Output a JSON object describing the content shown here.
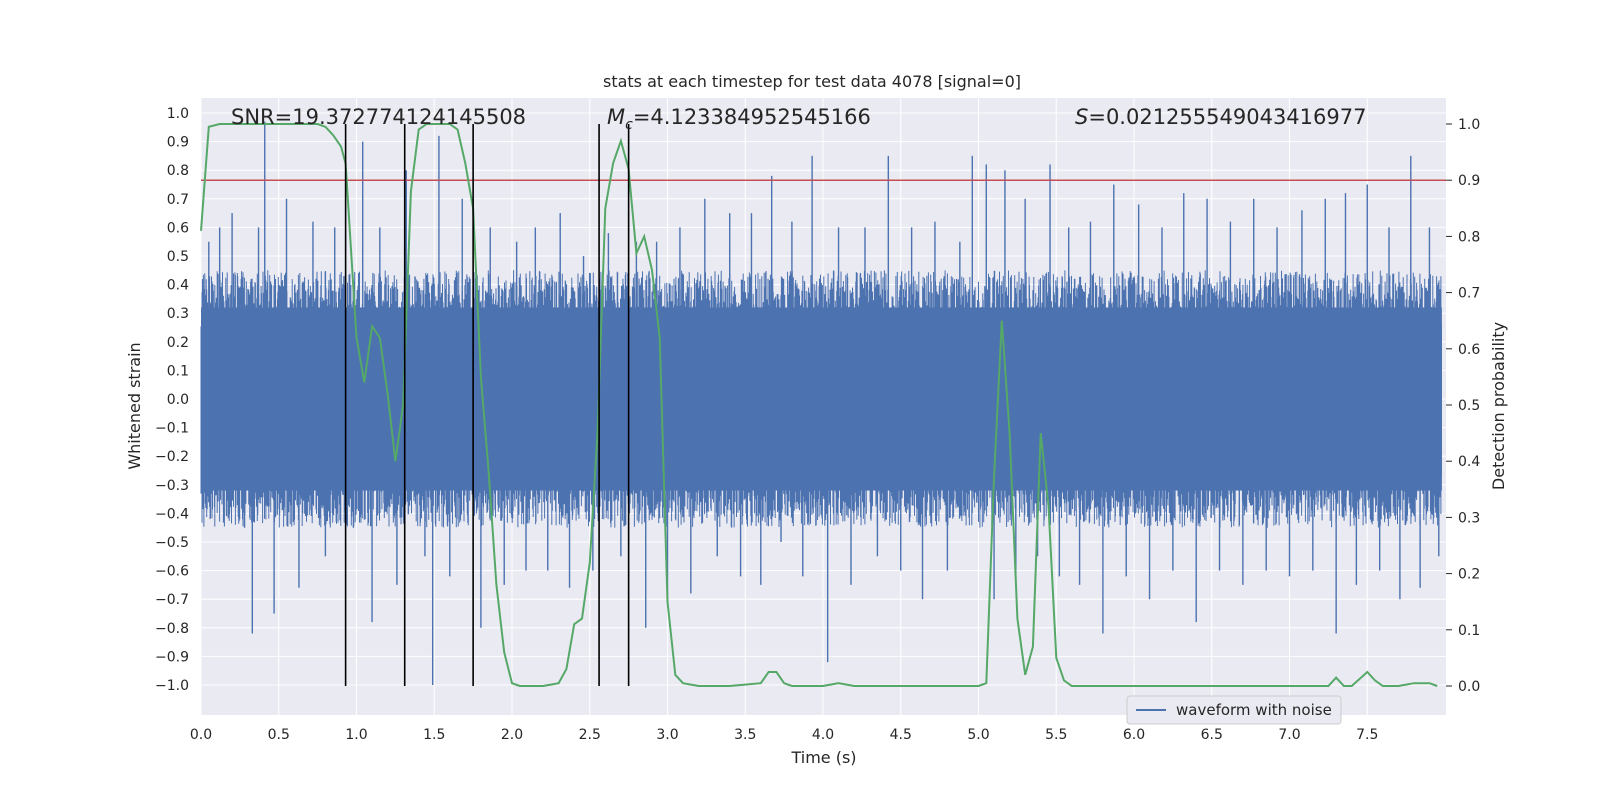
{
  "chart_data": {
    "type": "line",
    "title": "stats at each timestep for test data 4078 [signal=0]",
    "xlabel": "Time (s)",
    "ylabel": "Whitened strain",
    "y2label": "Detection probability",
    "xlim": [
      0.0,
      8.0
    ],
    "ylim": [
      -1.1,
      1.05
    ],
    "y2lim": [
      -0.048,
      1.045
    ],
    "xticks": [
      "0.0",
      "0.5",
      "1.0",
      "1.5",
      "2.0",
      "2.5",
      "3.0",
      "3.5",
      "4.0",
      "4.5",
      "5.0",
      "5.5",
      "6.0",
      "6.5",
      "7.0",
      "7.5"
    ],
    "yticks": [
      "1.0",
      "0.9",
      "0.8",
      "0.7",
      "0.6",
      "0.5",
      "0.4",
      "0.3",
      "0.2",
      "0.1",
      "0.0",
      "−0.1",
      "−0.2",
      "−0.3",
      "−0.4",
      "−0.5",
      "−0.6",
      "−0.7",
      "−0.8",
      "−0.9",
      "−1.0"
    ],
    "y2ticks": [
      "1.0",
      "0.9",
      "0.8",
      "0.7",
      "0.6",
      "0.5",
      "0.4",
      "0.3",
      "0.2",
      "0.1",
      "0.0"
    ],
    "annotations": {
      "snr": "SNR=19.372774124145508",
      "mc_symbol": "M",
      "mc_sub": "c",
      "mc_value": "=4.123384952545166",
      "s_symbol": "S",
      "s_value": "=0.021255549043416977"
    },
    "threshold": {
      "value": 0.9,
      "axis": "y2",
      "color": "#c44e52"
    },
    "vlines": [
      0.93,
      1.31,
      1.75,
      2.56,
      2.75
    ],
    "series": [
      {
        "name": "waveform with noise",
        "axis": "y",
        "color": "#4c72b0",
        "envelope": {
          "upper_typical": 0.45,
          "lower_typical": -0.45
        },
        "spikes": [
          [
            0.05,
            0.55
          ],
          [
            0.12,
            0.6
          ],
          [
            0.2,
            0.65
          ],
          [
            0.28,
            -0.45
          ],
          [
            0.33,
            -0.82
          ],
          [
            0.37,
            0.6
          ],
          [
            0.41,
            0.97
          ],
          [
            0.47,
            -0.75
          ],
          [
            0.55,
            0.7
          ],
          [
            0.63,
            -0.66
          ],
          [
            0.72,
            0.62
          ],
          [
            0.8,
            -0.55
          ],
          [
            0.86,
            0.6
          ],
          [
            0.98,
            -0.45
          ],
          [
            1.04,
            0.9
          ],
          [
            1.1,
            -0.78
          ],
          [
            1.15,
            0.6
          ],
          [
            1.26,
            -0.65
          ],
          [
            1.32,
            0.8
          ],
          [
            1.44,
            -0.55
          ],
          [
            1.49,
            -1.0
          ],
          [
            1.53,
            0.92
          ],
          [
            1.6,
            -0.62
          ],
          [
            1.68,
            0.7
          ],
          [
            1.8,
            -0.8
          ],
          [
            1.86,
            0.6
          ],
          [
            1.95,
            -0.65
          ],
          [
            2.03,
            0.55
          ],
          [
            2.09,
            -0.6
          ],
          [
            2.15,
            0.6
          ],
          [
            2.23,
            -0.6
          ],
          [
            2.31,
            0.65
          ],
          [
            2.37,
            -0.66
          ],
          [
            2.46,
            0.5
          ],
          [
            2.52,
            -0.6
          ],
          [
            2.62,
            0.58
          ],
          [
            2.7,
            -0.55
          ],
          [
            2.8,
            0.55
          ],
          [
            2.86,
            -0.8
          ],
          [
            2.93,
            0.55
          ],
          [
            3.0,
            -0.7
          ],
          [
            3.08,
            0.6
          ],
          [
            3.15,
            -0.68
          ],
          [
            3.24,
            0.7
          ],
          [
            3.32,
            -0.55
          ],
          [
            3.4,
            0.65
          ],
          [
            3.47,
            -0.62
          ],
          [
            3.54,
            0.65
          ],
          [
            3.6,
            -0.65
          ],
          [
            3.67,
            0.78
          ],
          [
            3.73,
            -0.5
          ],
          [
            3.8,
            0.62
          ],
          [
            3.87,
            -0.62
          ],
          [
            3.93,
            0.85
          ],
          [
            4.03,
            -0.92
          ],
          [
            4.1,
            0.6
          ],
          [
            4.18,
            -0.65
          ],
          [
            4.27,
            0.6
          ],
          [
            4.35,
            -0.55
          ],
          [
            4.42,
            0.85
          ],
          [
            4.5,
            -0.6
          ],
          [
            4.57,
            0.6
          ],
          [
            4.64,
            -0.7
          ],
          [
            4.72,
            0.62
          ],
          [
            4.8,
            -0.6
          ],
          [
            4.88,
            0.55
          ],
          [
            4.96,
            0.85
          ],
          [
            5.05,
            0.82
          ],
          [
            5.1,
            -0.7
          ],
          [
            5.17,
            0.8
          ],
          [
            5.24,
            -0.65
          ],
          [
            5.3,
            0.7
          ],
          [
            5.38,
            -0.55
          ],
          [
            5.46,
            0.82
          ],
          [
            5.52,
            -0.62
          ],
          [
            5.58,
            0.6
          ],
          [
            5.65,
            -0.65
          ],
          [
            5.72,
            0.62
          ],
          [
            5.8,
            -0.82
          ],
          [
            5.87,
            0.75
          ],
          [
            5.95,
            -0.62
          ],
          [
            6.03,
            0.68
          ],
          [
            6.1,
            -0.7
          ],
          [
            6.18,
            0.6
          ],
          [
            6.25,
            -0.6
          ],
          [
            6.32,
            0.72
          ],
          [
            6.4,
            -0.78
          ],
          [
            6.47,
            0.7
          ],
          [
            6.55,
            -0.6
          ],
          [
            6.62,
            0.62
          ],
          [
            6.7,
            -0.65
          ],
          [
            6.77,
            0.7
          ],
          [
            6.85,
            -0.6
          ],
          [
            6.92,
            0.6
          ],
          [
            7.0,
            -0.62
          ],
          [
            7.08,
            0.66
          ],
          [
            7.15,
            -0.6
          ],
          [
            7.23,
            0.7
          ],
          [
            7.3,
            -0.82
          ],
          [
            7.36,
            0.72
          ],
          [
            7.43,
            -0.65
          ],
          [
            7.5,
            0.75
          ],
          [
            7.58,
            -0.6
          ],
          [
            7.64,
            0.6
          ],
          [
            7.71,
            -0.7
          ],
          [
            7.78,
            0.85
          ],
          [
            7.84,
            -0.66
          ],
          [
            7.9,
            0.6
          ],
          [
            7.96,
            -0.55
          ]
        ]
      },
      {
        "name": "detection probability",
        "axis": "y2",
        "color": "#55a868",
        "x": [
          0.0,
          0.05,
          0.12,
          0.2,
          0.3,
          0.4,
          0.5,
          0.6,
          0.7,
          0.75,
          0.8,
          0.85,
          0.9,
          0.93,
          1.0,
          1.05,
          1.1,
          1.15,
          1.2,
          1.25,
          1.3,
          1.35,
          1.4,
          1.45,
          1.5,
          1.55,
          1.6,
          1.65,
          1.7,
          1.75,
          1.8,
          1.85,
          1.9,
          1.95,
          2.0,
          2.05,
          2.1,
          2.2,
          2.3,
          2.35,
          2.4,
          2.45,
          2.5,
          2.55,
          2.6,
          2.65,
          2.7,
          2.75,
          2.8,
          2.85,
          2.9,
          2.95,
          3.0,
          3.05,
          3.1,
          3.2,
          3.4,
          3.6,
          3.65,
          3.7,
          3.75,
          3.8,
          3.9,
          4.0,
          4.1,
          4.2,
          4.3,
          4.5,
          4.8,
          5.0,
          5.05,
          5.1,
          5.15,
          5.2,
          5.25,
          5.3,
          5.35,
          5.4,
          5.45,
          5.5,
          5.55,
          5.6,
          5.7,
          6.0,
          6.5,
          7.0,
          7.25,
          7.3,
          7.35,
          7.4,
          7.5,
          7.55,
          7.6,
          7.65,
          7.7,
          7.8,
          7.9,
          7.95
        ],
        "values": [
          0.81,
          0.995,
          1.0,
          1.0,
          1.0,
          1.0,
          1.0,
          1.0,
          1.0,
          1.0,
          0.995,
          0.98,
          0.96,
          0.93,
          0.62,
          0.54,
          0.64,
          0.62,
          0.52,
          0.4,
          0.5,
          0.88,
          0.99,
          1.0,
          1.0,
          1.0,
          1.0,
          0.99,
          0.93,
          0.85,
          0.55,
          0.38,
          0.18,
          0.06,
          0.005,
          0.0,
          0.0,
          0.0,
          0.005,
          0.03,
          0.11,
          0.12,
          0.22,
          0.45,
          0.85,
          0.93,
          0.97,
          0.92,
          0.77,
          0.8,
          0.74,
          0.62,
          0.15,
          0.02,
          0.005,
          0.0,
          0.0,
          0.005,
          0.025,
          0.025,
          0.005,
          0.0,
          0.0,
          0.0,
          0.005,
          0.0,
          0.0,
          0.0,
          0.0,
          0.0,
          0.005,
          0.37,
          0.65,
          0.45,
          0.12,
          0.02,
          0.07,
          0.45,
          0.32,
          0.05,
          0.01,
          0.0,
          0.0,
          0.0,
          0.0,
          0.0,
          0.0,
          0.015,
          0.0,
          0.0,
          0.025,
          0.01,
          0.0,
          0.0,
          0.0,
          0.005,
          0.005,
          0.0
        ]
      }
    ],
    "legend": {
      "label": "waveform with noise",
      "placement": "lower-right"
    }
  }
}
